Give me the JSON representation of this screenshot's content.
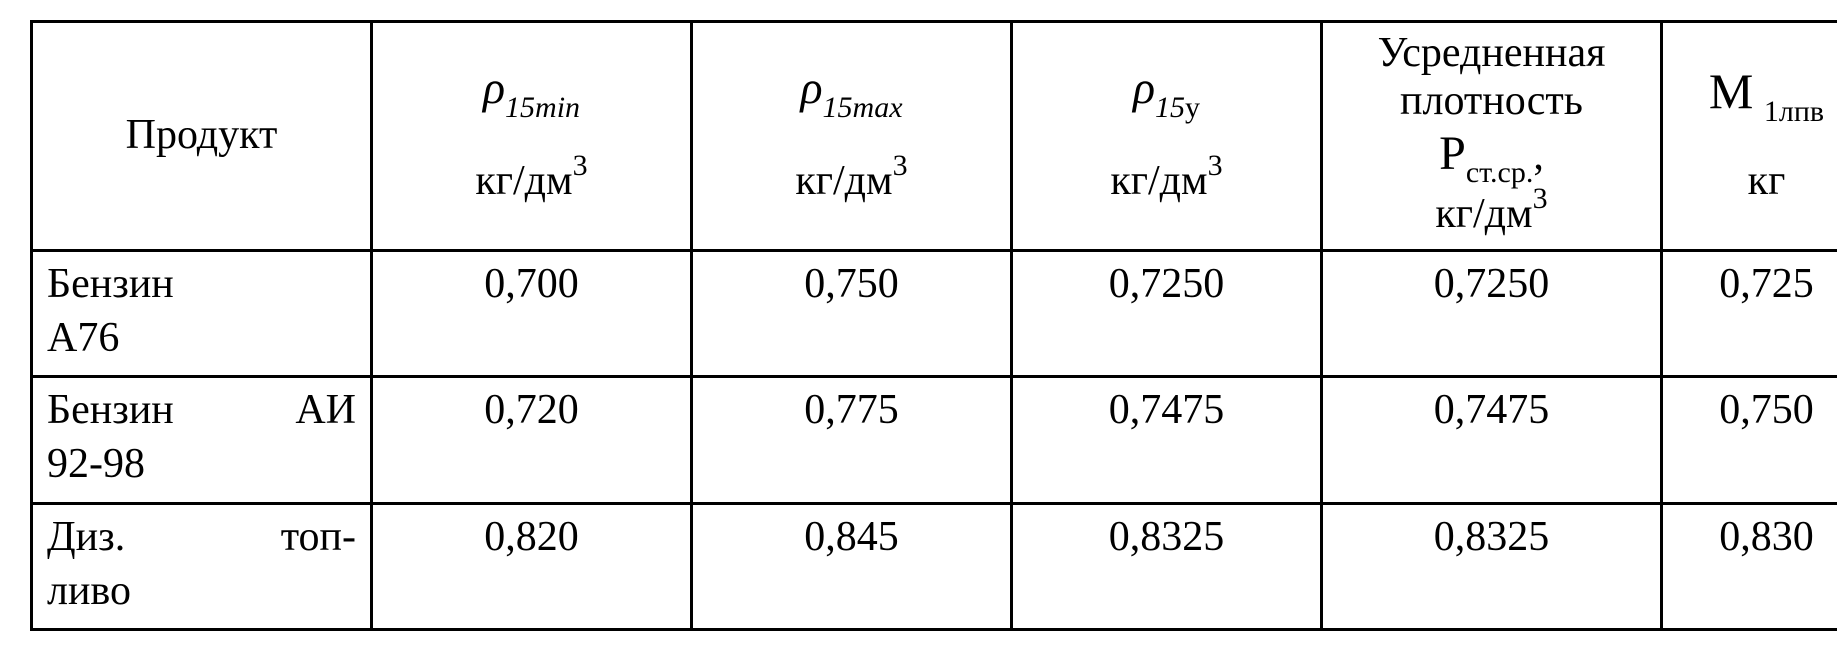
{
  "table": {
    "type": "table",
    "border_color": "#000000",
    "background_color": "#ffffff",
    "text_color": "#000000",
    "font_family": "Times New Roman",
    "header_fontsize_pt": 32,
    "cell_fontsize_pt": 32,
    "columns": [
      {
        "key": "product",
        "label_plain": "Продукт",
        "unit": ""
      },
      {
        "key": "rho15min",
        "label_plain": "ρ15min",
        "unit": "кг/дм³"
      },
      {
        "key": "rho15max",
        "label_plain": "ρ15max",
        "unit": "кг/дм³"
      },
      {
        "key": "rho15y",
        "label_plain": "ρ15у",
        "unit": "кг/дм³"
      },
      {
        "key": "p_st_sr",
        "label_plain": "Усредненная плотность Pст.ср.",
        "unit": "кг/дм³"
      },
      {
        "key": "m_1lpv",
        "label_plain": "M 1лпв",
        "unit": "кг"
      }
    ],
    "header_parts": {
      "product": "Продукт",
      "rho": "ρ",
      "sub_15min": "15min",
      "sub_15max": "15max",
      "sub_15": "15",
      "sub_y": "у",
      "avg_density_line1": "Усредненная",
      "avg_density_line2": "плотность",
      "P": "P",
      "sub_st_sr": "ст.ср.",
      "comma": ",",
      "M": "M",
      "sub_1lpv": "1лпв",
      "unit_kg_dm3_kg": "кг/дм",
      "sup_3": "3",
      "unit_kg": "кг"
    },
    "rows": [
      {
        "product_line1": "Бензин",
        "product_line2": "А76",
        "product_full": "Бензин А76",
        "justify": false,
        "rho15min": "0,700",
        "rho15max": "0,750",
        "rho15y": "0,7250",
        "p_st_sr": "0,7250",
        "m_1lpv": "0,725"
      },
      {
        "product_line1": "Бензин    АИ",
        "product_line2": "92-98",
        "product_full": "Бензин АИ 92-98",
        "justify": true,
        "rho15min": "0,720",
        "rho15max": "0,775",
        "rho15y": "0,7475",
        "p_st_sr": "0,7475",
        "m_1lpv": "0,750"
      },
      {
        "product_line1": "Диз.    топ-",
        "product_line2": "ливо",
        "product_full": "Диз. топливо",
        "justify": true,
        "rho15min": "0,820",
        "rho15max": "0,845",
        "rho15y": "0,8325",
        "p_st_sr": "0,8325",
        "m_1lpv": "0,830"
      }
    ]
  }
}
